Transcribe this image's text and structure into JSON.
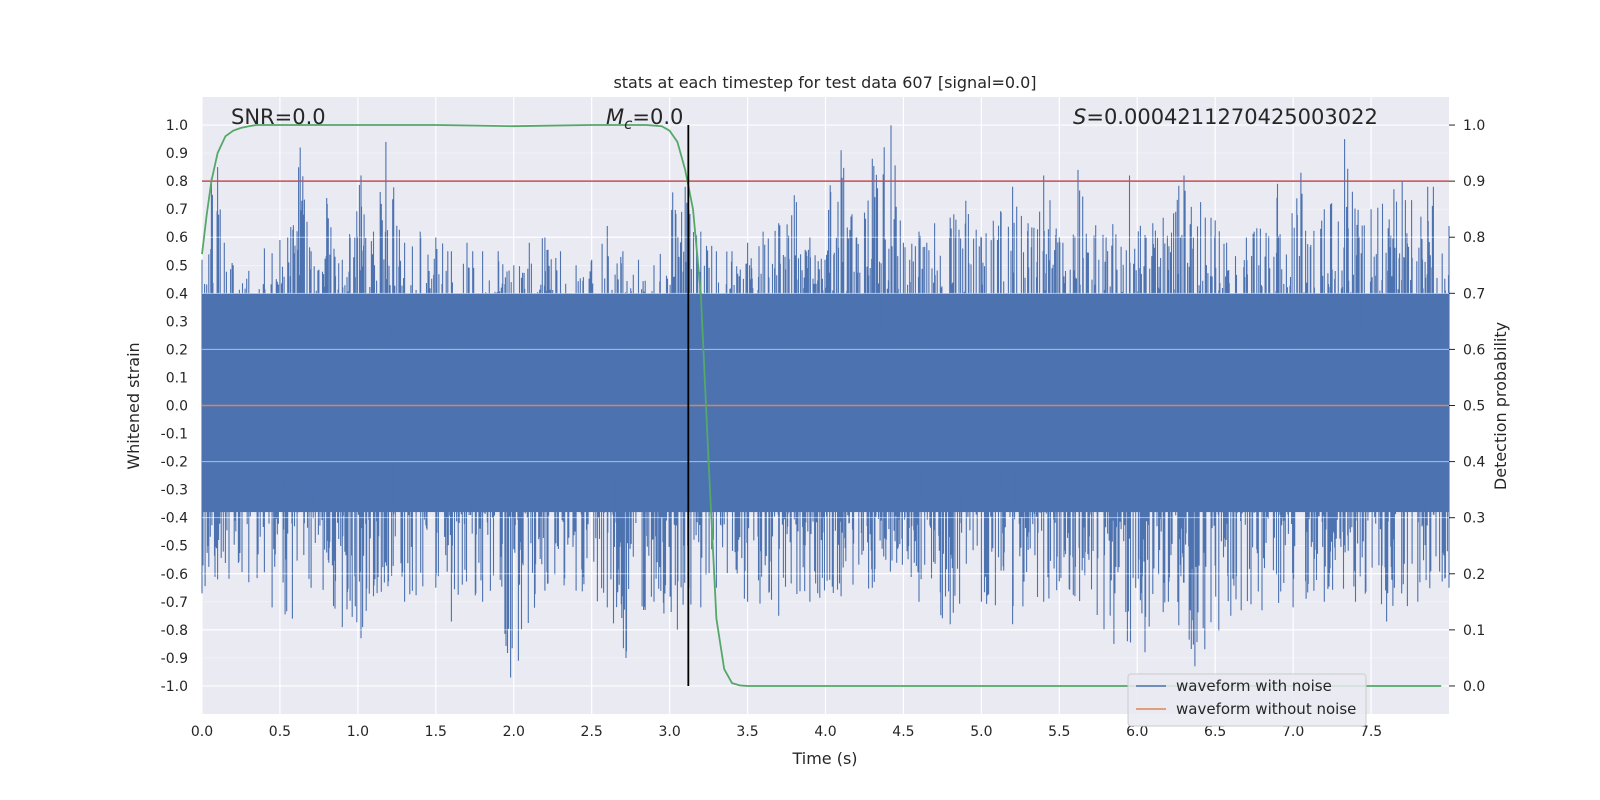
{
  "chart_data": {
    "type": "line",
    "title": "stats at each timestep for test data 607 [signal=0.0]",
    "xlabel": "Time (s)",
    "ylabel": "Whitened strain",
    "ylabel_right": "Detection probability",
    "xlim": [
      0.0,
      8.0
    ],
    "ylim": [
      -1.1,
      1.1
    ],
    "ylim_right": [
      -0.05,
      1.05
    ],
    "xticks": [
      "0.0",
      "0.5",
      "1.0",
      "1.5",
      "2.0",
      "2.5",
      "3.0",
      "3.5",
      "4.0",
      "4.5",
      "5.0",
      "5.5",
      "6.0",
      "6.5",
      "7.0",
      "7.5"
    ],
    "xtick_values": [
      0.0,
      0.5,
      1.0,
      1.5,
      2.0,
      2.5,
      3.0,
      3.5,
      4.0,
      4.5,
      5.0,
      5.5,
      6.0,
      6.5,
      7.0,
      7.5
    ],
    "yticks": [
      "1.0",
      "0.9",
      "0.8",
      "0.7",
      "0.6",
      "0.5",
      "0.4",
      "0.3",
      "0.2",
      "0.1",
      "0.0",
      "-0.1",
      "-0.2",
      "-0.3",
      "-0.4",
      "-0.5",
      "-0.6",
      "-0.7",
      "-0.8",
      "-0.9",
      "-1.0"
    ],
    "ytick_values": [
      1.0,
      0.9,
      0.8,
      0.7,
      0.6,
      0.5,
      0.4,
      0.3,
      0.2,
      0.1,
      0.0,
      -0.1,
      -0.2,
      -0.3,
      -0.4,
      -0.5,
      -0.6,
      -0.7,
      -0.8,
      -0.9,
      -1.0
    ],
    "yticks_right": [
      "1.0",
      "0.9",
      "0.8",
      "0.7",
      "0.6",
      "0.5",
      "0.4",
      "0.3",
      "0.2",
      "0.1",
      "0.0"
    ],
    "ytick_values_right": [
      1.0,
      0.9,
      0.8,
      0.7,
      0.6,
      0.5,
      0.4,
      0.3,
      0.2,
      0.1,
      0.0
    ],
    "annotations": {
      "snr": "SNR=0.0",
      "mc_symbol": "M",
      "mc_sub": "c",
      "mc_value": "=0.0",
      "s_symbol": "S",
      "s_value": "=0.0004211270425003022"
    },
    "series": [
      {
        "name": "waveform with noise",
        "color": "#4c72b0",
        "description": "dense noise trace",
        "envelope_peaks_pos": [
          [
            0.0,
            0.52
          ],
          [
            0.06,
            0.81
          ],
          [
            0.1,
            0.85
          ],
          [
            0.2,
            0.5
          ],
          [
            0.3,
            0.48
          ],
          [
            0.4,
            0.56
          ],
          [
            0.5,
            0.59
          ],
          [
            0.55,
            0.6
          ],
          [
            0.63,
            0.92
          ],
          [
            0.7,
            0.55
          ],
          [
            0.8,
            0.74
          ],
          [
            0.9,
            0.52
          ],
          [
            1.02,
            0.82
          ],
          [
            1.1,
            0.62
          ],
          [
            1.18,
            0.94
          ],
          [
            1.3,
            0.58
          ],
          [
            1.4,
            0.62
          ],
          [
            1.5,
            0.6
          ],
          [
            1.6,
            0.55
          ],
          [
            1.7,
            0.58
          ],
          [
            1.8,
            0.55
          ],
          [
            1.9,
            0.55
          ],
          [
            2.0,
            0.5
          ],
          [
            2.1,
            0.58
          ],
          [
            2.2,
            0.6
          ],
          [
            2.3,
            0.55
          ],
          [
            2.4,
            0.5
          ],
          [
            2.5,
            0.52
          ],
          [
            2.6,
            0.64
          ],
          [
            2.7,
            0.55
          ],
          [
            2.8,
            0.52
          ],
          [
            2.9,
            0.5
          ],
          [
            3.02,
            0.76
          ],
          [
            3.1,
            0.78
          ],
          [
            3.2,
            0.62
          ],
          [
            3.3,
            0.55
          ],
          [
            3.4,
            0.55
          ],
          [
            3.5,
            0.58
          ],
          [
            3.6,
            0.62
          ],
          [
            3.7,
            0.65
          ],
          [
            3.8,
            0.75
          ],
          [
            3.9,
            0.6
          ],
          [
            4.1,
            0.91
          ],
          [
            4.2,
            0.6
          ],
          [
            4.3,
            0.88
          ],
          [
            4.42,
            1.0
          ],
          [
            4.5,
            0.58
          ],
          [
            4.6,
            0.62
          ],
          [
            4.7,
            0.65
          ],
          [
            4.8,
            0.67
          ],
          [
            4.9,
            0.73
          ],
          [
            5.0,
            0.6
          ],
          [
            5.2,
            0.78
          ],
          [
            5.3,
            0.65
          ],
          [
            5.4,
            0.82
          ],
          [
            5.5,
            0.6
          ],
          [
            5.62,
            0.84
          ],
          [
            5.8,
            0.6
          ],
          [
            5.95,
            0.82
          ],
          [
            6.1,
            0.65
          ],
          [
            6.3,
            0.82
          ],
          [
            6.5,
            0.66
          ],
          [
            6.7,
            0.6
          ],
          [
            6.9,
            0.79
          ],
          [
            7.05,
            0.83
          ],
          [
            7.2,
            0.7
          ],
          [
            7.33,
            0.95
          ],
          [
            7.5,
            0.7
          ],
          [
            7.7,
            0.8
          ],
          [
            7.9,
            0.78
          ],
          [
            8.0,
            0.64
          ]
        ],
        "envelope_peaks_neg": [
          [
            0.0,
            -0.67
          ],
          [
            0.1,
            -0.62
          ],
          [
            0.3,
            -0.63
          ],
          [
            0.45,
            -0.72
          ],
          [
            0.58,
            -0.76
          ],
          [
            0.7,
            -0.65
          ],
          [
            0.9,
            -0.79
          ],
          [
            1.02,
            -0.83
          ],
          [
            1.1,
            -0.68
          ],
          [
            1.3,
            -0.7
          ],
          [
            1.5,
            -0.65
          ],
          [
            1.6,
            -0.77
          ],
          [
            1.8,
            -0.7
          ],
          [
            1.98,
            -0.97
          ],
          [
            2.03,
            -0.91
          ],
          [
            2.2,
            -0.66
          ],
          [
            2.4,
            -0.66
          ],
          [
            2.6,
            -0.72
          ],
          [
            2.72,
            -0.9
          ],
          [
            2.9,
            -0.7
          ],
          [
            3.05,
            -0.8
          ],
          [
            3.2,
            -0.72
          ],
          [
            3.3,
            -0.65
          ],
          [
            3.5,
            -0.7
          ],
          [
            3.7,
            -0.75
          ],
          [
            3.9,
            -0.7
          ],
          [
            4.1,
            -0.68
          ],
          [
            4.3,
            -0.65
          ],
          [
            4.6,
            -0.7
          ],
          [
            4.8,
            -0.78
          ],
          [
            5.0,
            -0.7
          ],
          [
            5.2,
            -0.78
          ],
          [
            5.4,
            -0.7
          ],
          [
            5.6,
            -0.68
          ],
          [
            5.85,
            -0.85
          ],
          [
            6.05,
            -0.88
          ],
          [
            6.2,
            -0.7
          ],
          [
            6.37,
            -0.93
          ],
          [
            6.6,
            -0.75
          ],
          [
            6.8,
            -0.73
          ],
          [
            7.0,
            -0.72
          ],
          [
            7.2,
            -0.7
          ],
          [
            7.4,
            -0.7
          ],
          [
            7.6,
            -0.77
          ],
          [
            7.8,
            -0.7
          ],
          [
            8.0,
            -0.65
          ]
        ],
        "core_band": [
          -0.38,
          0.4
        ]
      },
      {
        "name": "waveform without noise",
        "color": "#dd8452",
        "x": [
          0.0,
          8.0
        ],
        "y": [
          0.0,
          0.0
        ]
      },
      {
        "name": "detection probability",
        "axis": "right",
        "color": "#55a868",
        "x": [
          0.0,
          0.03,
          0.06,
          0.1,
          0.15,
          0.2,
          0.25,
          0.3,
          0.35,
          0.4,
          0.5,
          0.7,
          1.0,
          1.5,
          2.0,
          2.5,
          2.85,
          2.95,
          3.0,
          3.05,
          3.1,
          3.15,
          3.2,
          3.25,
          3.3,
          3.35,
          3.4,
          3.45,
          3.5,
          4.0,
          5.0,
          6.0,
          7.0,
          7.95
        ],
        "y": [
          0.77,
          0.84,
          0.9,
          0.95,
          0.98,
          0.99,
          0.995,
          0.998,
          1.0,
          1.0,
          1.0,
          1.0,
          1.0,
          1.0,
          0.998,
          1.0,
          1.0,
          0.998,
          0.99,
          0.97,
          0.92,
          0.85,
          0.7,
          0.4,
          0.12,
          0.03,
          0.005,
          0.001,
          0.0,
          0.0,
          0.0,
          0.0,
          0.0,
          0.0
        ]
      },
      {
        "name": "threshold",
        "axis": "right",
        "color": "#c44e52",
        "x": [
          0.0,
          8.0
        ],
        "y": [
          0.9,
          0.9
        ]
      },
      {
        "name": "merger time",
        "color": "#000000",
        "x": [
          3.12,
          3.12
        ],
        "y_right": [
          0.0,
          1.0
        ]
      }
    ],
    "legend": {
      "placement": "lower-right",
      "entries": [
        "waveform with noise",
        "waveform without noise"
      ]
    },
    "colors": {
      "axes_bg": "#eaeaf2",
      "grid": "#ffffff",
      "noise": "#4c72b0",
      "clean": "#dd8452",
      "prob": "#55a868",
      "threshold": "#c44e52"
    }
  }
}
